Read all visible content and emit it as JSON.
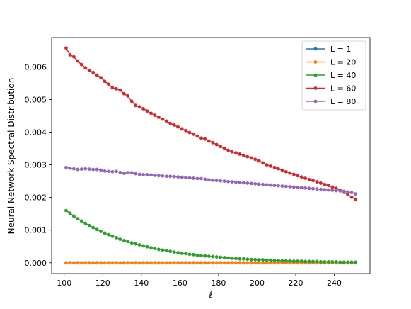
{
  "chart_data": {
    "type": "line",
    "xlabel": "ℓ",
    "ylabel": "Neural Network Spectral Distribution",
    "xlim": [
      93.5,
      258.5
    ],
    "ylim": [
      -0.00033,
      0.0069
    ],
    "xticks": [
      100,
      120,
      140,
      160,
      180,
      200,
      220,
      240
    ],
    "xtick_labels": [
      "100",
      "120",
      "140",
      "160",
      "180",
      "200",
      "220",
      "240"
    ],
    "yticks": [
      0.0,
      0.001,
      0.002,
      0.003,
      0.004,
      0.005,
      0.006
    ],
    "ytick_labels": [
      "0.000",
      "0.001",
      "0.002",
      "0.003",
      "0.004",
      "0.005",
      "0.006"
    ],
    "grid": false,
    "legend_position": "top-right",
    "x_start": 101,
    "x_end": 251,
    "x_step": 2,
    "series": [
      {
        "name": "L = 1",
        "color": "#1f77b4",
        "values": [
          0.0,
          0.0,
          0.0,
          0.0,
          0.0,
          0.0,
          0.0,
          0.0,
          0.0,
          0.0,
          0.0,
          0.0,
          0.0,
          0.0,
          0.0,
          0.0,
          0.0,
          0.0,
          0.0,
          0.0,
          0.0,
          0.0,
          0.0,
          0.0,
          0.0,
          0.0,
          0.0,
          0.0,
          0.0,
          0.0,
          0.0,
          0.0,
          0.0,
          0.0,
          0.0,
          0.0,
          0.0,
          0.0,
          0.0,
          0.0,
          0.0,
          0.0,
          0.0,
          0.0,
          0.0,
          0.0,
          0.0,
          0.0,
          0.0,
          0.0,
          0.0,
          0.0,
          0.0,
          0.0,
          0.0,
          0.0,
          0.0,
          0.0,
          0.0,
          0.0,
          0.0,
          0.0,
          0.0,
          0.0,
          0.0,
          0.0,
          0.0,
          0.0,
          0.0,
          0.0,
          0.0,
          0.0,
          0.0,
          0.0,
          0.0,
          0.0
        ]
      },
      {
        "name": "L = 20",
        "color": "#ff7f0e",
        "values": [
          0.0,
          0.0,
          0.0,
          0.0,
          0.0,
          0.0,
          0.0,
          0.0,
          0.0,
          0.0,
          0.0,
          0.0,
          0.0,
          0.0,
          0.0,
          0.0,
          0.0,
          0.0,
          0.0,
          0.0,
          0.0,
          0.0,
          0.0,
          0.0,
          0.0,
          0.0,
          0.0,
          0.0,
          0.0,
          0.0,
          0.0,
          0.0,
          0.0,
          0.0,
          0.0,
          0.0,
          0.0,
          0.0,
          0.0,
          0.0,
          0.0,
          0.0,
          0.0,
          0.0,
          0.0,
          0.0,
          0.0,
          0.0,
          0.0,
          0.0,
          0.0,
          0.0,
          0.0,
          0.0,
          0.0,
          0.0,
          0.0,
          0.0,
          0.0,
          0.0,
          0.0,
          0.0,
          0.0,
          0.0,
          0.0,
          0.0,
          0.0,
          0.0,
          0.0,
          0.0,
          0.0,
          0.0,
          0.0,
          0.0,
          0.0,
          0.0
        ]
      },
      {
        "name": "L = 40",
        "color": "#2ca02c",
        "values": [
          0.0016,
          0.00152,
          0.00143,
          0.00135,
          0.00128,
          0.00121,
          0.00114,
          0.00108,
          0.00102,
          0.00096,
          0.00091,
          0.00086,
          0.00081,
          0.00077,
          0.00072,
          0.00068,
          0.00065,
          0.00061,
          0.00058,
          0.00055,
          0.00052,
          0.00049,
          0.00046,
          0.00044,
          0.00041,
          0.00039,
          0.00037,
          0.00035,
          0.00033,
          0.00031,
          0.00029,
          0.00028,
          0.00026,
          0.00025,
          0.00023,
          0.00022,
          0.00021,
          0.0002,
          0.00019,
          0.00018,
          0.00017,
          0.00016,
          0.00015,
          0.00014,
          0.00013,
          0.00012,
          0.00012,
          0.00011,
          0.0001,
          0.0001,
          9e-05,
          9e-05,
          8e-05,
          8e-05,
          7e-05,
          7e-05,
          6e-05,
          6e-05,
          6e-05,
          5e-05,
          5e-05,
          5e-05,
          4e-05,
          4e-05,
          4e-05,
          4e-05,
          3e-05,
          3e-05,
          3e-05,
          3e-05,
          3e-05,
          2e-05,
          2e-05,
          2e-05,
          2e-05,
          2e-05
        ]
      },
      {
        "name": "L = 60",
        "color": "#d62728",
        "values": [
          0.00658,
          0.00637,
          0.00631,
          0.00618,
          0.00607,
          0.00597,
          0.00589,
          0.00583,
          0.00575,
          0.00567,
          0.00556,
          0.00547,
          0.00536,
          0.00533,
          0.00529,
          0.00518,
          0.00511,
          0.00495,
          0.00482,
          0.00478,
          0.00472,
          0.00465,
          0.00458,
          0.00452,
          0.00446,
          0.0044,
          0.00434,
          0.00427,
          0.00422,
          0.00416,
          0.0041,
          0.00405,
          0.00399,
          0.00394,
          0.00388,
          0.00382,
          0.00379,
          0.00373,
          0.00368,
          0.00362,
          0.00356,
          0.00351,
          0.00345,
          0.0034,
          0.00337,
          0.00333,
          0.00329,
          0.00325,
          0.00321,
          0.00317,
          0.00312,
          0.00306,
          0.003,
          0.00296,
          0.00292,
          0.00288,
          0.00284,
          0.00279,
          0.00275,
          0.00271,
          0.00267,
          0.00263,
          0.00259,
          0.00255,
          0.00252,
          0.00248,
          0.00244,
          0.0024,
          0.00237,
          0.00232,
          0.00228,
          0.00223,
          0.00216,
          0.00209,
          0.00201,
          0.00195
        ]
      },
      {
        "name": "L = 80",
        "color": "#9467bd",
        "values": [
          0.00292,
          0.0029,
          0.00288,
          0.00286,
          0.00287,
          0.00288,
          0.00287,
          0.00286,
          0.00286,
          0.00284,
          0.00281,
          0.0028,
          0.00279,
          0.0028,
          0.00277,
          0.00274,
          0.00276,
          0.00276,
          0.00273,
          0.00271,
          0.0027,
          0.0027,
          0.00269,
          0.00268,
          0.00267,
          0.00266,
          0.00265,
          0.00265,
          0.00264,
          0.00263,
          0.00262,
          0.00261,
          0.0026,
          0.00259,
          0.00258,
          0.00258,
          0.00256,
          0.00254,
          0.00253,
          0.00252,
          0.00251,
          0.0025,
          0.00249,
          0.00248,
          0.00247,
          0.00246,
          0.00245,
          0.00244,
          0.00243,
          0.00242,
          0.00241,
          0.0024,
          0.00239,
          0.00238,
          0.00237,
          0.00236,
          0.00235,
          0.00234,
          0.00233,
          0.00232,
          0.00231,
          0.0023,
          0.00229,
          0.00228,
          0.00227,
          0.00226,
          0.00225,
          0.00224,
          0.00223,
          0.00222,
          0.00221,
          0.0022,
          0.00219,
          0.00217,
          0.00215,
          0.00211
        ]
      }
    ]
  }
}
